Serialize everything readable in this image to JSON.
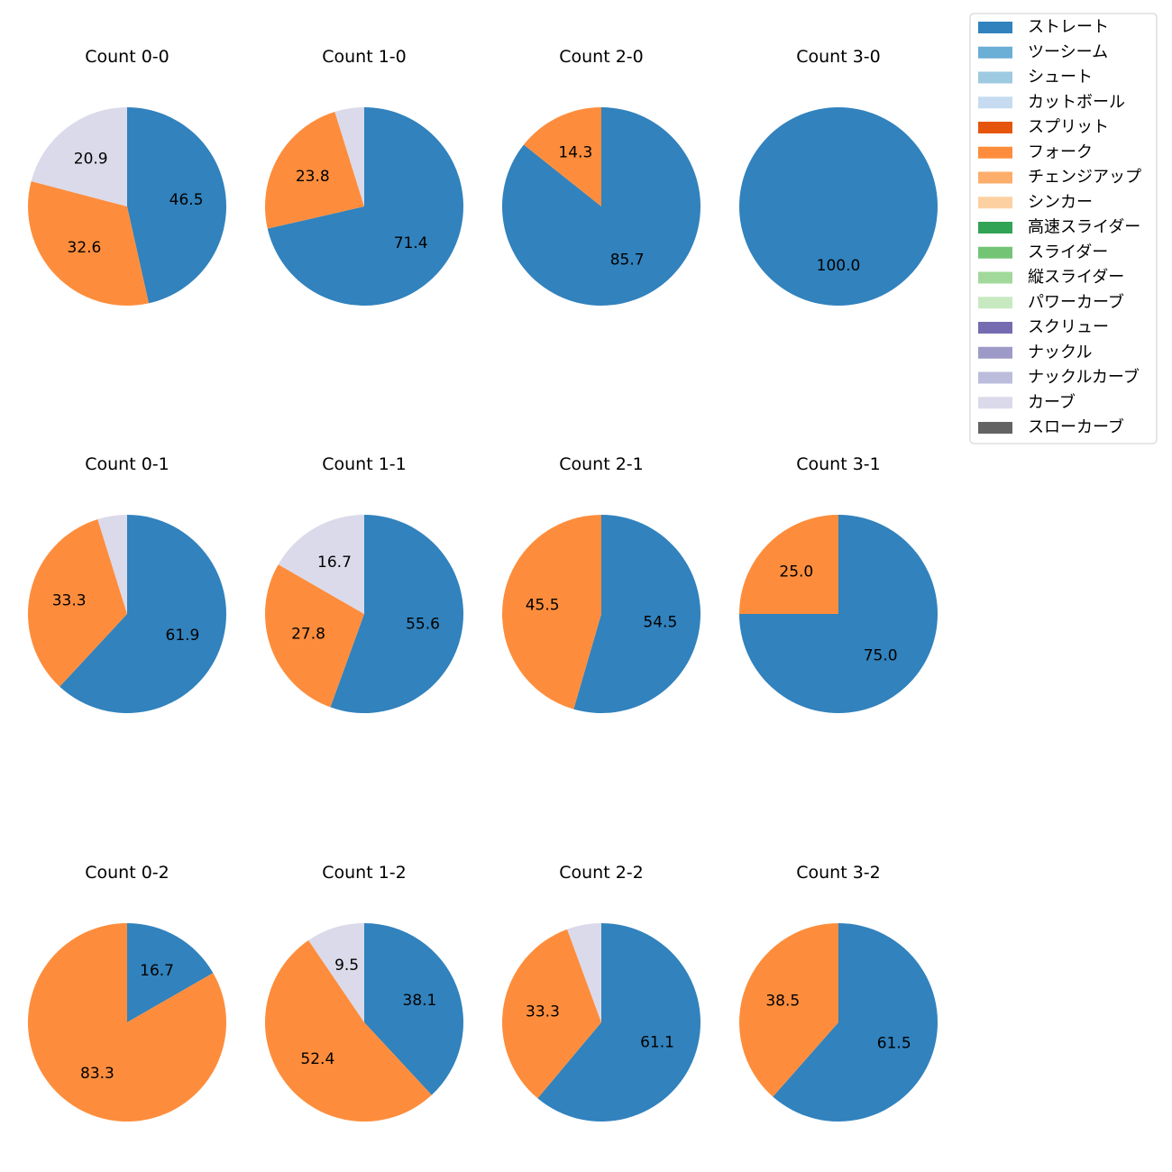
{
  "chart_data": {
    "type": "pie",
    "legend": {
      "location": "top-right",
      "entries": [
        {
          "name": "ストレート",
          "color": "#3182bd"
        },
        {
          "name": "ツーシーム",
          "color": "#6baed6"
        },
        {
          "name": "シュート",
          "color": "#9ecae1"
        },
        {
          "name": "カットボール",
          "color": "#c6dbef"
        },
        {
          "name": "スプリット",
          "color": "#e6550d"
        },
        {
          "name": "フォーク",
          "color": "#fd8d3c"
        },
        {
          "name": "チェンジアップ",
          "color": "#fdae6b"
        },
        {
          "name": "シンカー",
          "color": "#fdd0a2"
        },
        {
          "name": "高速スライダー",
          "color": "#31a354"
        },
        {
          "name": "スライダー",
          "color": "#74c476"
        },
        {
          "name": "縦スライダー",
          "color": "#a1d99b"
        },
        {
          "name": "パワーカーブ",
          "color": "#c7e9c0"
        },
        {
          "name": "スクリュー",
          "color": "#756bb1"
        },
        {
          "name": "ナックル",
          "color": "#9e9ac8"
        },
        {
          "name": "ナックルカーブ",
          "color": "#bcbddc"
        },
        {
          "name": "カーブ",
          "color": "#dadaeb"
        },
        {
          "name": "スローカーブ",
          "color": "#636363"
        }
      ]
    },
    "pies": [
      {
        "title": "Count 0-0",
        "slices": [
          {
            "pitch": "ストレート",
            "value": 46.5,
            "label": "46.5"
          },
          {
            "pitch": "フォーク",
            "value": 32.6,
            "label": "32.6"
          },
          {
            "pitch": "カーブ",
            "value": 20.9,
            "label": "20.9"
          }
        ]
      },
      {
        "title": "Count 1-0",
        "slices": [
          {
            "pitch": "ストレート",
            "value": 71.4,
            "label": "71.4"
          },
          {
            "pitch": "フォーク",
            "value": 23.8,
            "label": "23.8"
          },
          {
            "pitch": "カーブ",
            "value": 4.8,
            "label": ""
          }
        ]
      },
      {
        "title": "Count 2-0",
        "slices": [
          {
            "pitch": "ストレート",
            "value": 85.7,
            "label": "85.7"
          },
          {
            "pitch": "フォーク",
            "value": 14.3,
            "label": "14.3"
          }
        ]
      },
      {
        "title": "Count 3-0",
        "slices": [
          {
            "pitch": "ストレート",
            "value": 100.0,
            "label": "100.0"
          }
        ]
      },
      {
        "title": "Count 0-1",
        "slices": [
          {
            "pitch": "ストレート",
            "value": 61.9,
            "label": "61.9"
          },
          {
            "pitch": "フォーク",
            "value": 33.3,
            "label": "33.3"
          },
          {
            "pitch": "カーブ",
            "value": 4.8,
            "label": ""
          }
        ]
      },
      {
        "title": "Count 1-1",
        "slices": [
          {
            "pitch": "ストレート",
            "value": 55.6,
            "label": "55.6"
          },
          {
            "pitch": "フォーク",
            "value": 27.8,
            "label": "27.8"
          },
          {
            "pitch": "カーブ",
            "value": 16.7,
            "label": "16.7"
          }
        ]
      },
      {
        "title": "Count 2-1",
        "slices": [
          {
            "pitch": "ストレート",
            "value": 54.5,
            "label": "54.5"
          },
          {
            "pitch": "フォーク",
            "value": 45.5,
            "label": "45.5"
          }
        ]
      },
      {
        "title": "Count 3-1",
        "slices": [
          {
            "pitch": "ストレート",
            "value": 75.0,
            "label": "75.0"
          },
          {
            "pitch": "フォーク",
            "value": 25.0,
            "label": "25.0"
          }
        ]
      },
      {
        "title": "Count 0-2",
        "slices": [
          {
            "pitch": "ストレート",
            "value": 16.7,
            "label": "16.7"
          },
          {
            "pitch": "フォーク",
            "value": 83.3,
            "label": "83.3"
          }
        ]
      },
      {
        "title": "Count 1-2",
        "slices": [
          {
            "pitch": "ストレート",
            "value": 38.1,
            "label": "38.1"
          },
          {
            "pitch": "フォーク",
            "value": 52.4,
            "label": "52.4"
          },
          {
            "pitch": "カーブ",
            "value": 9.5,
            "label": "9.5"
          }
        ]
      },
      {
        "title": "Count 2-2",
        "slices": [
          {
            "pitch": "ストレート",
            "value": 61.1,
            "label": "61.1"
          },
          {
            "pitch": "フォーク",
            "value": 33.3,
            "label": "33.3"
          },
          {
            "pitch": "カーブ",
            "value": 5.6,
            "label": ""
          }
        ]
      },
      {
        "title": "Count 3-2",
        "slices": [
          {
            "pitch": "ストレート",
            "value": 61.5,
            "label": "61.5"
          },
          {
            "pitch": "フォーク",
            "value": 38.5,
            "label": "38.5"
          }
        ]
      }
    ]
  }
}
